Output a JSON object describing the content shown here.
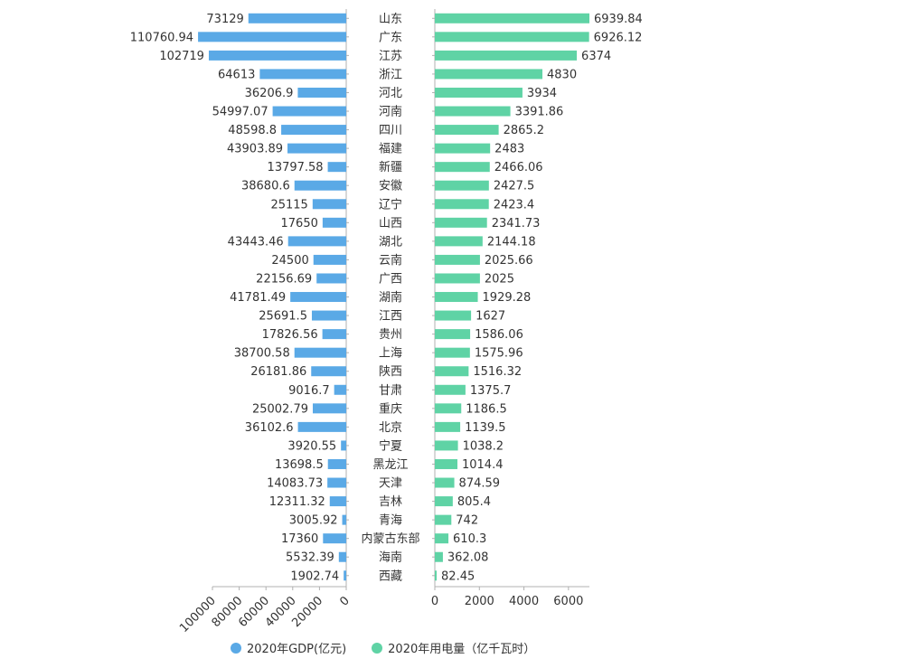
{
  "chart_data": {
    "type": "bar",
    "orientation": "horizontal",
    "layout": "butterfly",
    "categories": [
      "山东",
      "广东",
      "江苏",
      "浙江",
      "河北",
      "河南",
      "四川",
      "福建",
      "新疆",
      "安徽",
      "辽宁",
      "山西",
      "湖北",
      "云南",
      "广西",
      "湖南",
      "江西",
      "贵州",
      "上海",
      "陕西",
      "甘肃",
      "重庆",
      "北京",
      "宁夏",
      "黑龙江",
      "天津",
      "吉林",
      "青海",
      "内蒙古东部",
      "海南",
      "西藏"
    ],
    "series": [
      {
        "name": "2020年GDP(亿元)",
        "color": "#5aa9e6",
        "values": [
          73129,
          110760.94,
          102719,
          64613,
          36206.9,
          54997.07,
          48598.8,
          43903.89,
          13797.58,
          38680.6,
          25115,
          17650,
          43443.46,
          24500,
          22156.69,
          41781.49,
          25691.5,
          17826.56,
          38700.58,
          26181.86,
          9016.7,
          25002.79,
          36102.6,
          3920.55,
          13698.5,
          14083.73,
          12311.32,
          3005.92,
          17360,
          5532.39,
          1902.74
        ],
        "labels": [
          "73129",
          "110760.94",
          "102719",
          "64613",
          "36206.9",
          "54997.07",
          "48598.8",
          "43903.89",
          "13797.58",
          "38680.6",
          "25115",
          "17650",
          "43443.46",
          "24500",
          "22156.69",
          "41781.49",
          "25691.5",
          "17826.56",
          "38700.58",
          "26181.86",
          "9016.7",
          "25002.79",
          "36102.6",
          "3920.55",
          "13698.5",
          "14083.73",
          "12311.32",
          "3005.92",
          "17360",
          "5532.39",
          "1902.74"
        ],
        "axis_ticks": [
          "100000",
          "80000",
          "60000",
          "40000",
          "20000",
          "0"
        ],
        "axis_max": 100000
      },
      {
        "name": "2020年用电量（亿千瓦时）",
        "color": "#5fd3a5",
        "values": [
          6939.84,
          6926.12,
          6374,
          4830,
          3934,
          3391.86,
          2865.2,
          2483,
          2466.06,
          2427.5,
          2423.4,
          2341.73,
          2144.18,
          2025.66,
          2025,
          1929.28,
          1627,
          1586.06,
          1575.96,
          1516.32,
          1375.7,
          1186.5,
          1139.5,
          1038.2,
          1014.4,
          874.59,
          805.4,
          742,
          610.3,
          362.08,
          82.45
        ],
        "labels": [
          "6939.84",
          "6926.12",
          "6374",
          "4830",
          "3934",
          "3391.86",
          "2865.2",
          "2483",
          "2466.06",
          "2427.5",
          "2423.4",
          "2341.73",
          "2144.18",
          "2025.66",
          "2025",
          "1929.28",
          "1627",
          "1586.06",
          "1575.96",
          "1516.32",
          "1375.7",
          "1186.5",
          "1139.5",
          "1038.2",
          "1014.4",
          "874.59",
          "805.4",
          "742",
          "610.3",
          "362.08",
          "82.45"
        ],
        "axis_ticks": [
          "0",
          "2000",
          "4000",
          "6000"
        ],
        "axis_max": 6939.84
      }
    ],
    "legend_position": "bottom-left",
    "grid": false
  }
}
